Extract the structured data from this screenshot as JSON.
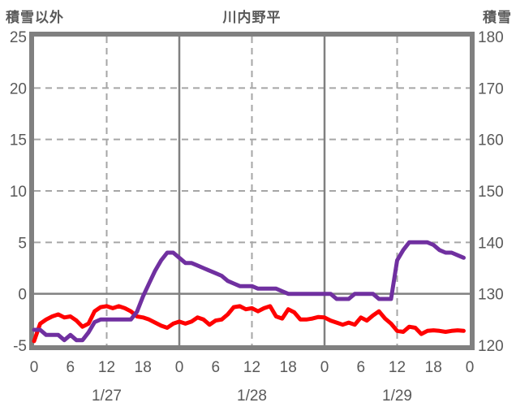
{
  "labels": {
    "left_axis_title": "積雪以外",
    "chart_title": "川内野平",
    "right_axis_title": "積雪"
  },
  "colors": {
    "background": "#FFFFFF",
    "border": "#808080",
    "grid_dashed": "#A6A6A6",
    "grid_solid": "#808080",
    "text": "#595959",
    "series_red": "#FF0000",
    "series_purple": "#7030A0"
  },
  "chart_data": {
    "type": "line",
    "title": "川内野平",
    "x_unit": "hours (3 days)",
    "x_range": [
      0,
      72
    ],
    "x_ticks": {
      "hours": [
        0,
        6,
        12,
        18,
        24,
        30,
        36,
        42,
        48,
        54,
        60,
        66,
        72
      ],
      "labels": [
        "0",
        "6",
        "12",
        "18",
        "0",
        "6",
        "12",
        "18",
        "0",
        "6",
        "12",
        "18",
        "0"
      ]
    },
    "date_labels": [
      {
        "label": "1/27",
        "hour": 12
      },
      {
        "label": "1/28",
        "hour": 36
      },
      {
        "label": "1/29",
        "hour": 60
      }
    ],
    "left_axis": {
      "title": "積雪以外",
      "range": [
        -5,
        25
      ],
      "ticks": [
        "25",
        "20",
        "15",
        "10",
        "5",
        "0",
        "-5"
      ],
      "tick_values": [
        25,
        20,
        15,
        10,
        5,
        0,
        -5
      ]
    },
    "right_axis": {
      "title": "積雪",
      "range": [
        120,
        180
      ],
      "ticks": [
        "180",
        "170",
        "160",
        "150",
        "140",
        "130",
        "120"
      ],
      "tick_values": [
        180,
        170,
        160,
        150,
        140,
        130,
        120
      ]
    },
    "grid": {
      "horizontal_dashed_left_values": [
        20,
        15,
        10,
        5
      ],
      "horizontal_solid_left_values": [
        0
      ],
      "vertical_dashed_hours": [
        12,
        36,
        60
      ],
      "vertical_solid_hours": [
        24,
        48
      ]
    },
    "legend_position": "none",
    "series": [
      {
        "name": "積雪以外",
        "axis": "left",
        "color": "#FF0000",
        "start_hour": 0,
        "step_hours": 1,
        "values": [
          -4.6,
          -2.9,
          -2.5,
          -2.2,
          -2.0,
          -2.3,
          -2.2,
          -2.6,
          -3.2,
          -2.9,
          -1.7,
          -1.3,
          -1.2,
          -1.4,
          -1.2,
          -1.4,
          -1.7,
          -2.2,
          -2.3,
          -2.5,
          -2.8,
          -3.1,
          -3.3,
          -2.9,
          -2.7,
          -2.9,
          -2.7,
          -2.3,
          -2.5,
          -3.0,
          -2.6,
          -2.5,
          -2.0,
          -1.3,
          -1.2,
          -1.5,
          -1.4,
          -1.7,
          -1.4,
          -1.2,
          -2.2,
          -2.4,
          -1.5,
          -1.8,
          -2.5,
          -2.5,
          -2.4,
          -2.25,
          -2.3,
          -2.6,
          -2.8,
          -3.0,
          -2.8,
          -3.0,
          -2.3,
          -2.6,
          -2.1,
          -1.7,
          -2.4,
          -2.9,
          -3.6,
          -3.7,
          -3.2,
          -3.3,
          -3.9,
          -3.6,
          -3.55,
          -3.6,
          -3.7,
          -3.6,
          -3.55,
          -3.6
        ]
      },
      {
        "name": "積雪",
        "axis": "right",
        "color": "#7030A0",
        "start_hour": 0,
        "step_hours": 1,
        "values": [
          123,
          123,
          122,
          122,
          122,
          121,
          122,
          121,
          121,
          122.5,
          124.5,
          125,
          125,
          125,
          125,
          125,
          125,
          126.5,
          129.5,
          132,
          134.5,
          136.5,
          138,
          138,
          137,
          136,
          136,
          135.5,
          135,
          134.5,
          134,
          133.5,
          132.5,
          132,
          131.5,
          131.5,
          131.5,
          131,
          131,
          131,
          131,
          130.5,
          130,
          130,
          130,
          130,
          130,
          130,
          130,
          130,
          129,
          129,
          129,
          130,
          130,
          130,
          130,
          129,
          129,
          129,
          136.5,
          138.5,
          140,
          140,
          140,
          140,
          139.5,
          138.5,
          138,
          138,
          137.5,
          137
        ]
      }
    ]
  }
}
